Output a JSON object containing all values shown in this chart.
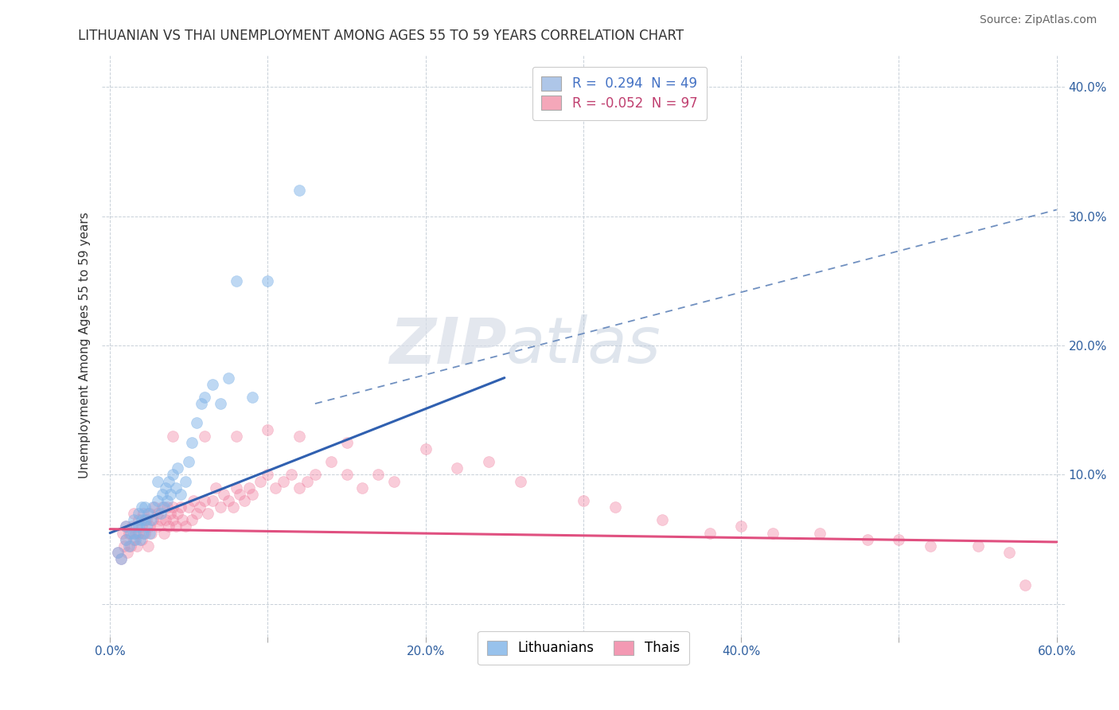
{
  "title": "LITHUANIAN VS THAI UNEMPLOYMENT AMONG AGES 55 TO 59 YEARS CORRELATION CHART",
  "source": "Source: ZipAtlas.com",
  "ylabel": "Unemployment Among Ages 55 to 59 years",
  "xlabel": "",
  "xlim": [
    -0.005,
    0.605
  ],
  "ylim": [
    -0.025,
    0.425
  ],
  "xticks": [
    0.0,
    0.1,
    0.2,
    0.3,
    0.4,
    0.5,
    0.6
  ],
  "yticks": [
    0.0,
    0.1,
    0.2,
    0.3,
    0.4
  ],
  "ytick_labels": [
    "",
    "10.0%",
    "20.0%",
    "30.0%",
    "40.0%"
  ],
  "xtick_labels": [
    "0.0%",
    "",
    "20.0%",
    "",
    "40.0%",
    "",
    "60.0%"
  ],
  "legend_items": [
    {
      "label_r": "R =  0.294",
      "label_n": "  N = 49",
      "color": "#aec6e8",
      "text_color": "#4472c4"
    },
    {
      "label_r": "R = -0.052",
      "label_n": "  N = 97",
      "color": "#f4a7b9",
      "text_color": "#c04070"
    }
  ],
  "watermark": "ZIPatlas",
  "blue_scatter_x": [
    0.005,
    0.007,
    0.01,
    0.01,
    0.012,
    0.013,
    0.015,
    0.015,
    0.016,
    0.017,
    0.018,
    0.018,
    0.019,
    0.02,
    0.02,
    0.021,
    0.022,
    0.022,
    0.023,
    0.024,
    0.025,
    0.026,
    0.027,
    0.03,
    0.03,
    0.032,
    0.033,
    0.034,
    0.035,
    0.036,
    0.037,
    0.038,
    0.04,
    0.042,
    0.043,
    0.045,
    0.048,
    0.05,
    0.052,
    0.055,
    0.058,
    0.06,
    0.065,
    0.07,
    0.075,
    0.08,
    0.09,
    0.1,
    0.12
  ],
  "blue_scatter_y": [
    0.04,
    0.035,
    0.05,
    0.06,
    0.045,
    0.055,
    0.055,
    0.065,
    0.05,
    0.06,
    0.06,
    0.07,
    0.05,
    0.065,
    0.075,
    0.055,
    0.065,
    0.075,
    0.06,
    0.07,
    0.055,
    0.065,
    0.075,
    0.08,
    0.095,
    0.07,
    0.085,
    0.075,
    0.09,
    0.08,
    0.095,
    0.085,
    0.1,
    0.09,
    0.105,
    0.085,
    0.095,
    0.11,
    0.125,
    0.14,
    0.155,
    0.16,
    0.17,
    0.155,
    0.175,
    0.25,
    0.16,
    0.25,
    0.32
  ],
  "pink_scatter_x": [
    0.005,
    0.007,
    0.008,
    0.009,
    0.01,
    0.01,
    0.011,
    0.012,
    0.013,
    0.014,
    0.015,
    0.015,
    0.016,
    0.017,
    0.018,
    0.018,
    0.02,
    0.02,
    0.021,
    0.022,
    0.023,
    0.024,
    0.025,
    0.025,
    0.026,
    0.027,
    0.028,
    0.03,
    0.03,
    0.032,
    0.033,
    0.034,
    0.035,
    0.036,
    0.037,
    0.038,
    0.04,
    0.04,
    0.042,
    0.043,
    0.045,
    0.046,
    0.048,
    0.05,
    0.052,
    0.053,
    0.055,
    0.057,
    0.06,
    0.062,
    0.065,
    0.067,
    0.07,
    0.072,
    0.075,
    0.078,
    0.08,
    0.082,
    0.085,
    0.088,
    0.09,
    0.095,
    0.1,
    0.105,
    0.11,
    0.115,
    0.12,
    0.125,
    0.13,
    0.14,
    0.15,
    0.16,
    0.17,
    0.18,
    0.2,
    0.22,
    0.24,
    0.26,
    0.3,
    0.32,
    0.35,
    0.38,
    0.4,
    0.42,
    0.45,
    0.48,
    0.5,
    0.52,
    0.55,
    0.57,
    0.04,
    0.06,
    0.08,
    0.1,
    0.12,
    0.15,
    0.58
  ],
  "pink_scatter_y": [
    0.04,
    0.035,
    0.055,
    0.045,
    0.06,
    0.05,
    0.04,
    0.055,
    0.045,
    0.06,
    0.05,
    0.07,
    0.055,
    0.045,
    0.065,
    0.055,
    0.06,
    0.05,
    0.07,
    0.055,
    0.065,
    0.045,
    0.06,
    0.07,
    0.055,
    0.065,
    0.075,
    0.06,
    0.07,
    0.065,
    0.075,
    0.055,
    0.065,
    0.075,
    0.06,
    0.07,
    0.065,
    0.075,
    0.06,
    0.07,
    0.075,
    0.065,
    0.06,
    0.075,
    0.065,
    0.08,
    0.07,
    0.075,
    0.08,
    0.07,
    0.08,
    0.09,
    0.075,
    0.085,
    0.08,
    0.075,
    0.09,
    0.085,
    0.08,
    0.09,
    0.085,
    0.095,
    0.1,
    0.09,
    0.095,
    0.1,
    0.09,
    0.095,
    0.1,
    0.11,
    0.1,
    0.09,
    0.1,
    0.095,
    0.12,
    0.105,
    0.11,
    0.095,
    0.08,
    0.075,
    0.065,
    0.055,
    0.06,
    0.055,
    0.055,
    0.05,
    0.05,
    0.045,
    0.045,
    0.04,
    0.13,
    0.13,
    0.13,
    0.135,
    0.13,
    0.125,
    0.015
  ],
  "blue_line_x": [
    0.0,
    0.25
  ],
  "blue_line_y": [
    0.055,
    0.175
  ],
  "pink_line_x": [
    0.0,
    0.6
  ],
  "pink_line_y": [
    0.058,
    0.048
  ],
  "dashed_line_x": [
    0.13,
    0.6
  ],
  "dashed_line_y": [
    0.155,
    0.305
  ],
  "colors": {
    "blue_scatter": "#7fb3e8",
    "pink_scatter": "#f080a0",
    "blue_line": "#3060b0",
    "pink_line": "#e05080",
    "dashed_line": "#7090c0",
    "grid": "#c8d0d8",
    "background": "#ffffff",
    "title": "#333333",
    "source": "#666666",
    "axis_text": "#3060a0",
    "watermark": "#d0d8e8"
  },
  "title_fontsize": 12,
  "axis_label_fontsize": 11,
  "tick_fontsize": 11,
  "source_fontsize": 10
}
